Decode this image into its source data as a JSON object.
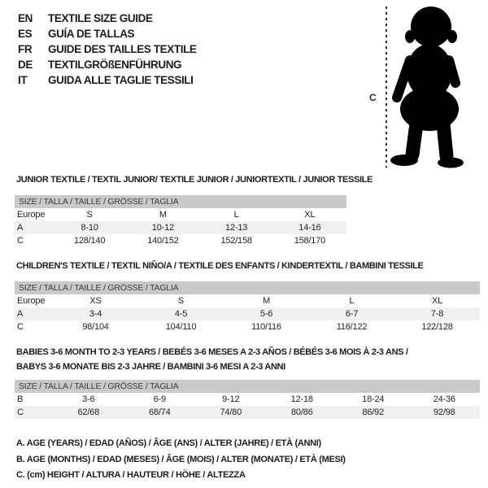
{
  "colors": {
    "header_band": "#c9c9c9",
    "shaded_row": "#f0f0f0",
    "ink": "#1d1d1d",
    "silhouette": "#000000",
    "dash_line": "#2b2b2b"
  },
  "language_guide": [
    {
      "code": "EN",
      "label": "TEXTILE SIZE GUIDE"
    },
    {
      "code": "ES",
      "label": "GUÍA DE TALLAS"
    },
    {
      "code": "FR",
      "label": "GUIDE DES TAILLES TEXTILE"
    },
    {
      "code": "DE",
      "label": "TEXTILGRÖßENFÜHRUNG"
    },
    {
      "code": "IT",
      "label": "GUIDA ALLE TAGLIE TESSILI"
    }
  ],
  "figure": {
    "measure_label": "C"
  },
  "sections": [
    {
      "title_lines": [
        "JUNIOR TEXTILE / TEXTIL JUNIOR/ TEXTILE JUNIOR / JUNIORTEXTIL / JUNIOR TESSILE"
      ],
      "table": {
        "header": "SIZE / TALLA / TAILLE / GRÖSSE / TAGLIA",
        "rows": [
          {
            "label": "Europe",
            "shaded": false,
            "values": [
              "S",
              "M",
              "L",
              "XL"
            ]
          },
          {
            "label": "A",
            "shaded": true,
            "values": [
              "8-10",
              "10-12",
              "12-13",
              "14-16"
            ]
          },
          {
            "label": "C",
            "shaded": false,
            "values": [
              "128/140",
              "140/152",
              "152/158",
              "158/170"
            ]
          }
        ]
      }
    },
    {
      "title_lines": [
        "CHILDREN'S TEXTILE / TEXTIL NIÑO/A / TEXTILE DES ENFANTS / KINDERTEXTIL / BAMBINI TESSILE"
      ],
      "table": {
        "header": "SIZE / TALLA / TAILLE / GRÖSSE / TAGLIA",
        "rows": [
          {
            "label": "Europe",
            "shaded": false,
            "values": [
              "XS",
              "S",
              "M",
              "L",
              "XL"
            ]
          },
          {
            "label": "A",
            "shaded": true,
            "values": [
              "3-4",
              "4-5",
              "5-6",
              "6-7",
              "7-8"
            ]
          },
          {
            "label": "C",
            "shaded": false,
            "values": [
              "98/104",
              "104/110",
              "110/116",
              "116/122",
              "122/128"
            ]
          }
        ]
      }
    },
    {
      "title_lines": [
        "BABIES 3-6 MONTH TO 2-3 YEARS / BEBÉS 3-6 MESES A 2-3 AÑOS / BÉBÉS 3-6 MOIS À 2-3 ANS /",
        "BABYS 3-6 MONATE BIS 2-3 JAHRE / BAMBINI 3-6 MESI A 2-3 ANNI"
      ],
      "table": {
        "header": "SIZE / TALLA / TAILLE / GRÖSSE / TAGLIA",
        "rows": [
          {
            "label": "B",
            "shaded": false,
            "values": [
              "3-6",
              "6-9",
              "9-12",
              "12-18",
              "18-24",
              "24-36"
            ]
          },
          {
            "label": "C",
            "shaded": true,
            "values": [
              "62/68",
              "68/74",
              "74/80",
              "80/86",
              "86/92",
              "92/98"
            ]
          }
        ]
      }
    }
  ],
  "legend": [
    "A. AGE (YEARS) / EDAD (AÑOS) / ÂGE (ANS) / ALTER (JAHRE) / ETÀ (ANNI)",
    "B. AGE (MONTHS) / EDAD (MESES) / ÂGE (MOIS) / ALTER (MONATE) / ETÀ (MESI)",
    "C. (cm) HEIGHT / ALTURA / HAUTEUR / HÖHE / ALTEZZA"
  ]
}
